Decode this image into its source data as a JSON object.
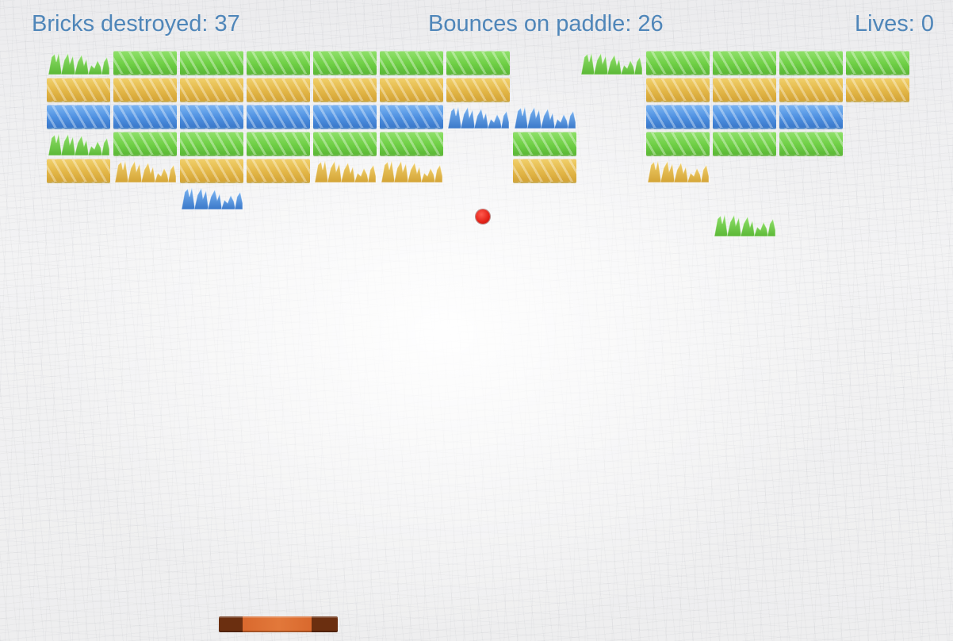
{
  "hud": {
    "bricks_destroyed": "Bricks destroyed: 37",
    "bounces_on_paddle": "Bounces on paddle: 26",
    "lives": "Lives: 0"
  },
  "colors": {
    "hud_text": "#4f86b9",
    "brick_green": "#6fcf46",
    "brick_yellow": "#e3b748",
    "brick_blue": "#4d8fe0",
    "ball": "#e32218",
    "paddle": "#d9692e",
    "paddle_caps": "#6b2f10"
  },
  "bricks": [
    {
      "row": 0,
      "col": 0,
      "color": "green",
      "state": "cracked"
    },
    {
      "row": 0,
      "col": 1,
      "color": "green",
      "state": "intact"
    },
    {
      "row": 0,
      "col": 2,
      "color": "green",
      "state": "intact"
    },
    {
      "row": 0,
      "col": 3,
      "color": "green",
      "state": "intact"
    },
    {
      "row": 0,
      "col": 4,
      "color": "green",
      "state": "intact"
    },
    {
      "row": 0,
      "col": 5,
      "color": "green",
      "state": "intact"
    },
    {
      "row": 0,
      "col": 6,
      "color": "green",
      "state": "intact"
    },
    {
      "row": 0,
      "col": 8,
      "color": "green",
      "state": "cracked"
    },
    {
      "row": 0,
      "col": 9,
      "color": "green",
      "state": "intact"
    },
    {
      "row": 0,
      "col": 10,
      "color": "green",
      "state": "intact"
    },
    {
      "row": 0,
      "col": 11,
      "color": "green",
      "state": "intact"
    },
    {
      "row": 0,
      "col": 12,
      "color": "green",
      "state": "intact"
    },
    {
      "row": 1,
      "col": 0,
      "color": "yellow",
      "state": "intact"
    },
    {
      "row": 1,
      "col": 1,
      "color": "yellow",
      "state": "intact"
    },
    {
      "row": 1,
      "col": 2,
      "color": "yellow",
      "state": "intact"
    },
    {
      "row": 1,
      "col": 3,
      "color": "yellow",
      "state": "intact"
    },
    {
      "row": 1,
      "col": 4,
      "color": "yellow",
      "state": "intact"
    },
    {
      "row": 1,
      "col": 5,
      "color": "yellow",
      "state": "intact"
    },
    {
      "row": 1,
      "col": 6,
      "color": "yellow",
      "state": "intact"
    },
    {
      "row": 1,
      "col": 9,
      "color": "yellow",
      "state": "intact"
    },
    {
      "row": 1,
      "col": 10,
      "color": "yellow",
      "state": "intact"
    },
    {
      "row": 1,
      "col": 11,
      "color": "yellow",
      "state": "intact"
    },
    {
      "row": 1,
      "col": 12,
      "color": "yellow",
      "state": "intact"
    },
    {
      "row": 2,
      "col": 0,
      "color": "blue",
      "state": "intact"
    },
    {
      "row": 2,
      "col": 1,
      "color": "blue",
      "state": "intact"
    },
    {
      "row": 2,
      "col": 2,
      "color": "blue",
      "state": "intact"
    },
    {
      "row": 2,
      "col": 3,
      "color": "blue",
      "state": "intact"
    },
    {
      "row": 2,
      "col": 4,
      "color": "blue",
      "state": "intact"
    },
    {
      "row": 2,
      "col": 5,
      "color": "blue",
      "state": "intact"
    },
    {
      "row": 2,
      "col": 6,
      "color": "blue",
      "state": "cracked"
    },
    {
      "row": 2,
      "col": 7,
      "color": "blue",
      "state": "cracked"
    },
    {
      "row": 2,
      "col": 9,
      "color": "blue",
      "state": "intact"
    },
    {
      "row": 2,
      "col": 10,
      "color": "blue",
      "state": "intact"
    },
    {
      "row": 2,
      "col": 11,
      "color": "blue",
      "state": "intact"
    },
    {
      "row": 3,
      "col": 0,
      "color": "green",
      "state": "cracked"
    },
    {
      "row": 3,
      "col": 1,
      "color": "green",
      "state": "intact"
    },
    {
      "row": 3,
      "col": 2,
      "color": "green",
      "state": "intact"
    },
    {
      "row": 3,
      "col": 3,
      "color": "green",
      "state": "intact"
    },
    {
      "row": 3,
      "col": 4,
      "color": "green",
      "state": "intact"
    },
    {
      "row": 3,
      "col": 5,
      "color": "green",
      "state": "intact"
    },
    {
      "row": 3,
      "col": 7,
      "color": "green",
      "state": "intact"
    },
    {
      "row": 3,
      "col": 9,
      "color": "green",
      "state": "intact"
    },
    {
      "row": 3,
      "col": 10,
      "color": "green",
      "state": "intact"
    },
    {
      "row": 3,
      "col": 11,
      "color": "green",
      "state": "intact"
    },
    {
      "row": 4,
      "col": 0,
      "color": "yellow",
      "state": "intact"
    },
    {
      "row": 4,
      "col": 1,
      "color": "yellow",
      "state": "cracked"
    },
    {
      "row": 4,
      "col": 2,
      "color": "yellow",
      "state": "intact"
    },
    {
      "row": 4,
      "col": 3,
      "color": "yellow",
      "state": "intact"
    },
    {
      "row": 4,
      "col": 4,
      "color": "yellow",
      "state": "cracked"
    },
    {
      "row": 4,
      "col": 5,
      "color": "yellow",
      "state": "cracked"
    },
    {
      "row": 4,
      "col": 7,
      "color": "yellow",
      "state": "intact"
    },
    {
      "row": 4,
      "col": 9,
      "color": "yellow",
      "state": "cracked"
    },
    {
      "row": 5,
      "col": 2,
      "color": "blue",
      "state": "cracked"
    },
    {
      "row": 6,
      "col": 10,
      "color": "green",
      "state": "cracked"
    }
  ]
}
